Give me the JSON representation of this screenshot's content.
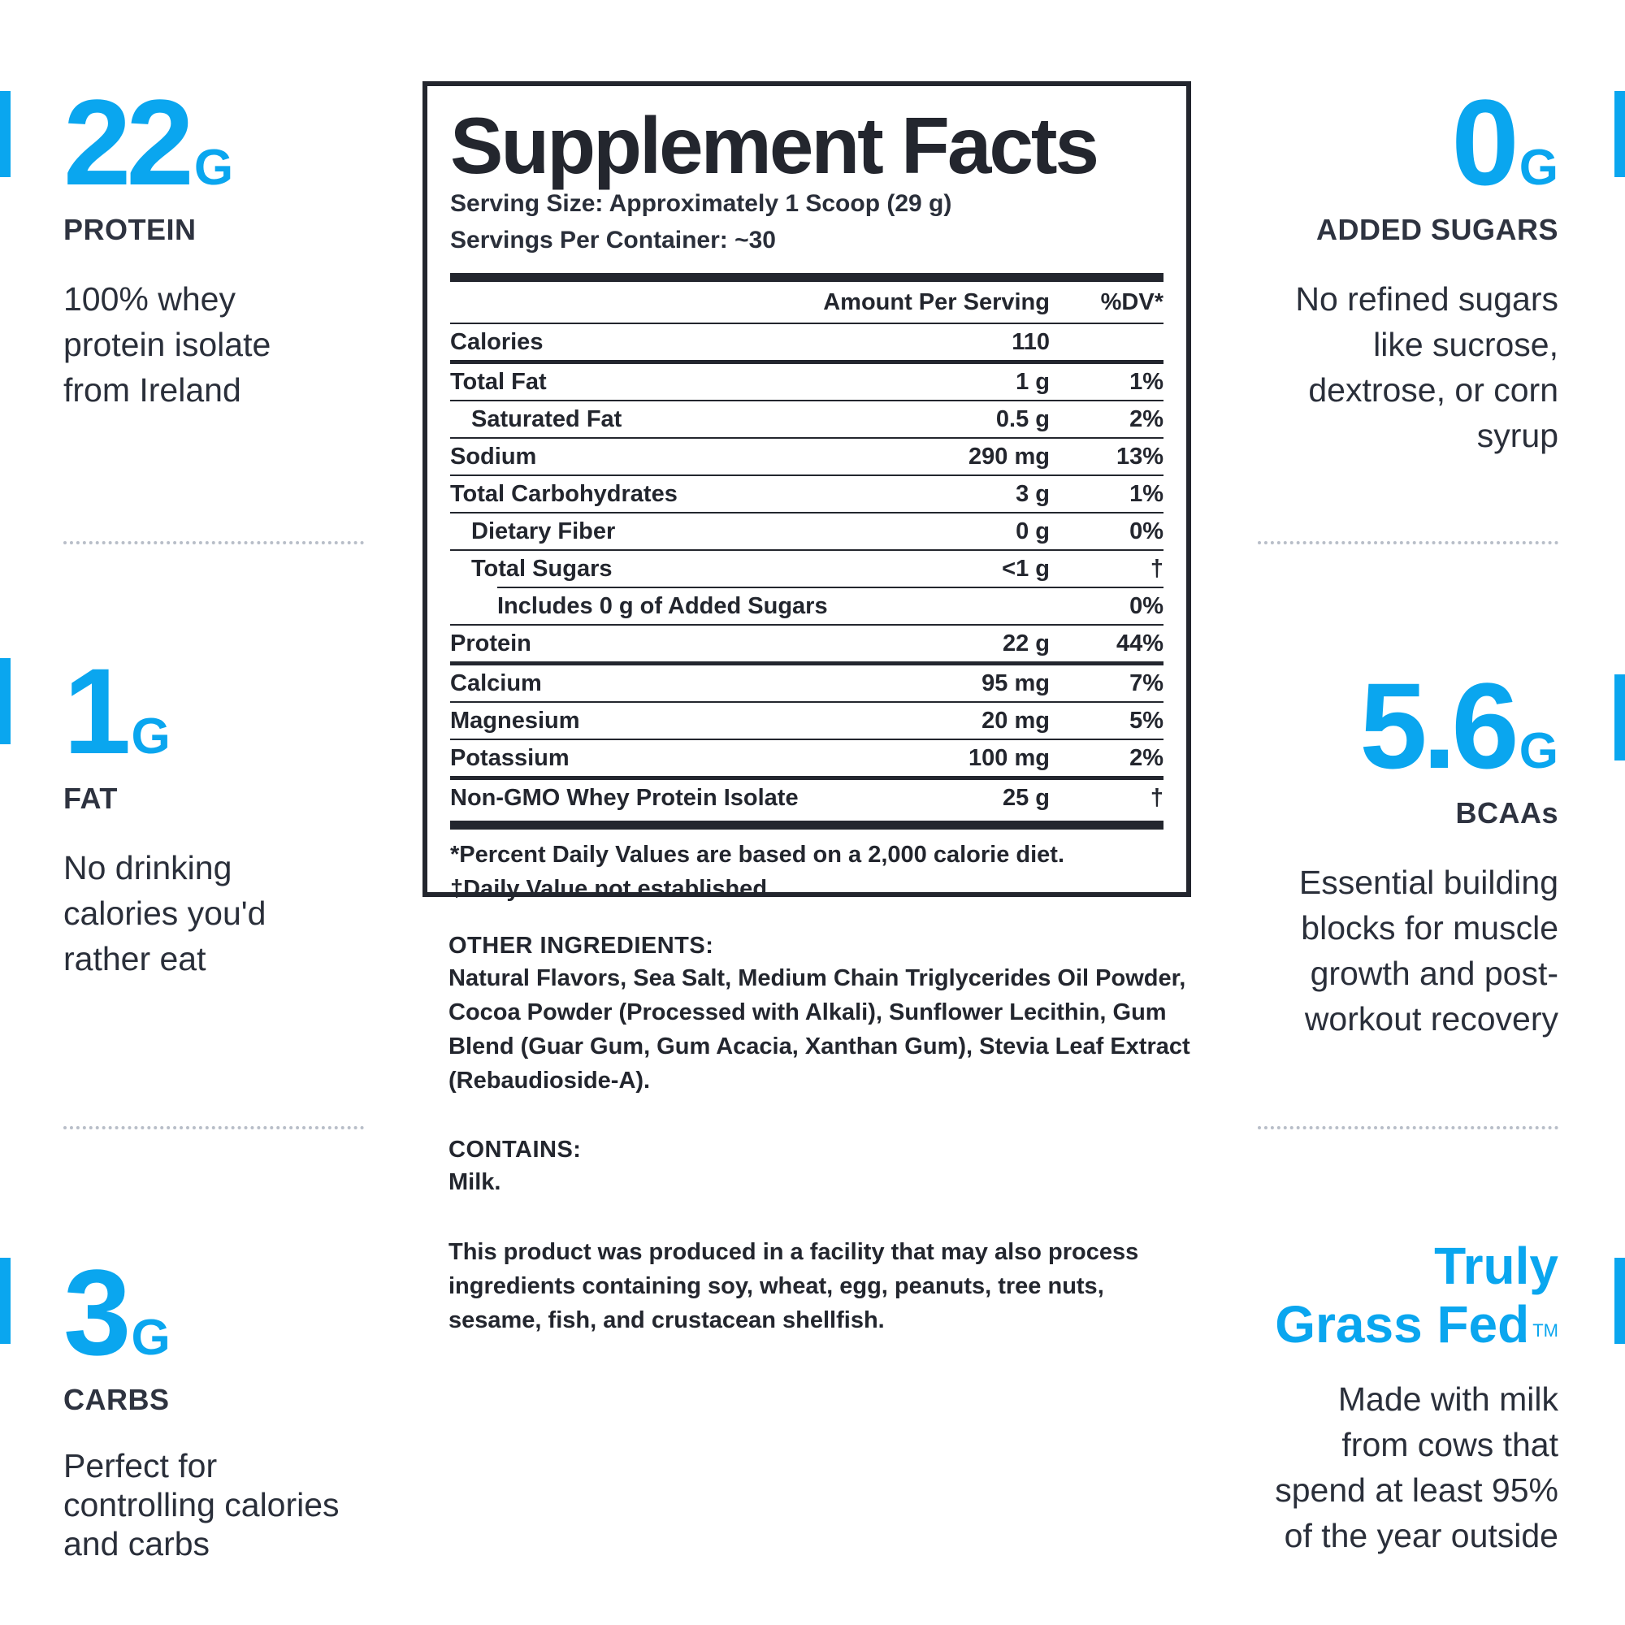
{
  "colors": {
    "accent": "#0aa6ef",
    "text": "#2a2f3a",
    "border": "#23262e",
    "divider": "#b8bec8"
  },
  "left": [
    {
      "value": "22",
      "unit": "G",
      "label": "PROTEIN",
      "desc": [
        "100% whey",
        "protein isolate",
        "from Ireland"
      ]
    },
    {
      "value": "1",
      "unit": "G",
      "label": "FAT",
      "desc": [
        "No drinking",
        "calories you'd",
        "rather eat"
      ]
    },
    {
      "value": "3",
      "unit": "G",
      "label": "CARBS",
      "desc": [
        "Perfect for",
        "controlling calories",
        "and carbs"
      ]
    }
  ],
  "right": [
    {
      "value": "0",
      "unit": "G",
      "label": "ADDED SUGARS",
      "desc": [
        "No refined sugars",
        "like sucrose,",
        "dextrose, or corn",
        "syrup"
      ]
    },
    {
      "value": "5.6",
      "unit": "G",
      "label": "BCAAs",
      "desc": [
        "Essential building",
        "blocks for muscle",
        "growth and post-",
        "workout recovery"
      ]
    },
    {
      "title_line1": "Truly",
      "title_line2": "Grass Fed",
      "tm": "TM",
      "desc": [
        "Made with milk",
        "from cows that",
        "spend at least 95%",
        "of the year outside"
      ]
    }
  ],
  "facts": {
    "title": "Supplement Facts",
    "serving_size": "Serving Size: Approximately 1 Scoop (29 g)",
    "servings_per_container": "Servings Per Container: ~30",
    "header_amount": "Amount Per Serving",
    "header_dv": "%DV*",
    "rows": [
      {
        "name": "Calories",
        "amount": "110",
        "dv": ""
      },
      {
        "name": "Total Fat",
        "amount": "1 g",
        "dv": "1%"
      },
      {
        "name": "Saturated Fat",
        "amount": "0.5 g",
        "dv": "2%"
      },
      {
        "name": "Sodium",
        "amount": "290 mg",
        "dv": "13%"
      },
      {
        "name": "Total Carbohydrates",
        "amount": "3 g",
        "dv": "1%"
      },
      {
        "name": "Dietary Fiber",
        "amount": "0 g",
        "dv": "0%"
      },
      {
        "name": "Total Sugars",
        "amount": "<1 g",
        "dv": "†"
      },
      {
        "name": "Includes 0 g of Added Sugars",
        "amount": "",
        "dv": "0%"
      },
      {
        "name": "Protein",
        "amount": "22 g",
        "dv": "44%"
      },
      {
        "name": "Calcium",
        "amount": "95 mg",
        "dv": "7%"
      },
      {
        "name": "Magnesium",
        "amount": "20 mg",
        "dv": "5%"
      },
      {
        "name": "Potassium",
        "amount": "100 mg",
        "dv": "2%"
      },
      {
        "name": "Non-GMO Whey Protein Isolate",
        "amount": "25 g",
        "dv": "†"
      }
    ],
    "footnote1": "*Percent Daily Values are based on a 2,000 calorie diet.",
    "footnote2": "†Daily Value not established."
  },
  "other_ingredients": {
    "title": "OTHER INGREDIENTS:",
    "text": "Natural Flavors, Sea Salt, Medium Chain Triglycerides Oil Powder, Cocoa Powder (Processed with Alkali), Sunflower Lecithin, Gum Blend (Guar Gum, Gum Acacia, Xanthan Gum), Stevia Leaf Extract (Rebaudioside-A)."
  },
  "contains": {
    "title": "CONTAINS:",
    "text": "Milk."
  },
  "facility_notice": "This product was produced in a facility that may also process ingredients containing soy, wheat, egg, peanuts, tree nuts, sesame, fish, and crustacean shellfish."
}
